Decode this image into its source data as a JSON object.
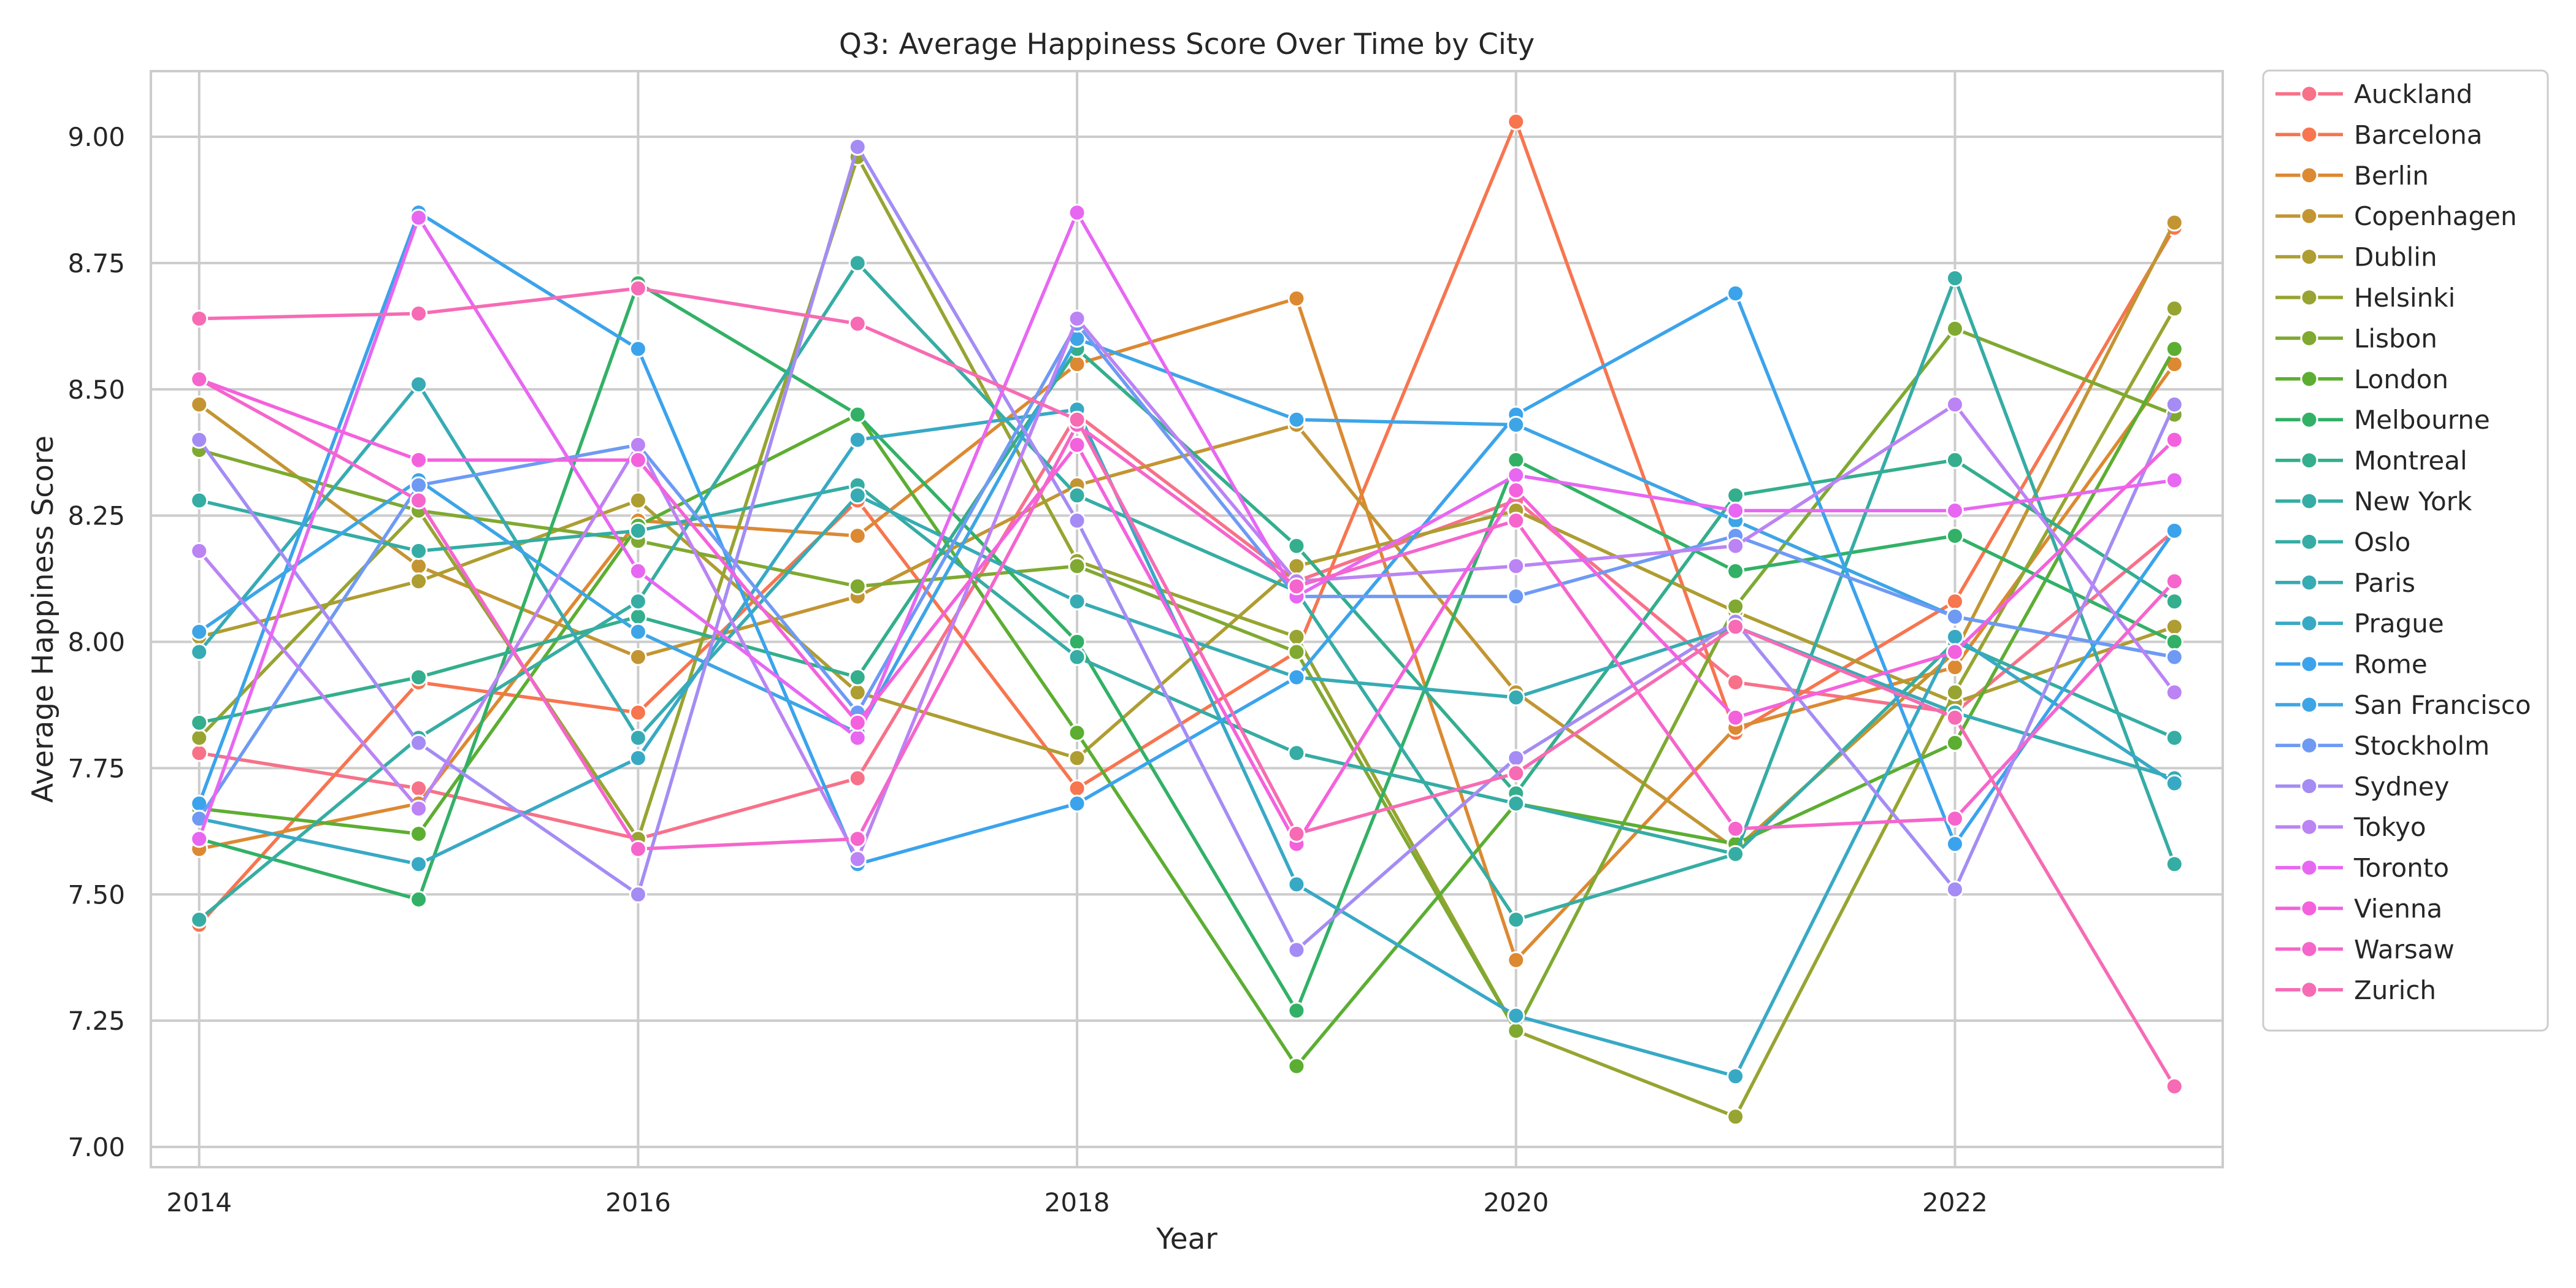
{
  "chart_data": {
    "type": "line",
    "title": "Q3: Average Happiness Score Over Time by City",
    "xlabel": "Year",
    "ylabel": "Average Happiness Score",
    "x": [
      2014,
      2015,
      2016,
      2017,
      2018,
      2019,
      2020,
      2021,
      2022,
      2023
    ],
    "xticks": [
      "2014",
      "2016",
      "2018",
      "2020",
      "2022"
    ],
    "yticks": [
      "7.00",
      "7.25",
      "7.50",
      "7.75",
      "8.00",
      "8.25",
      "8.50",
      "8.75",
      "9.00"
    ],
    "xlim": [
      2013.78,
      2023.22
    ],
    "ylim": [
      6.96,
      9.13
    ],
    "grid": true,
    "legend_position": "outside-right",
    "series": [
      {
        "name": "Auckland",
        "color": "#f77189",
        "values": [
          7.78,
          7.71,
          7.61,
          7.73,
          8.45,
          8.12,
          8.28,
          7.92,
          7.86,
          8.22
        ]
      },
      {
        "name": "Barcelona",
        "color": "#f7754f",
        "values": [
          7.44,
          7.92,
          7.86,
          8.28,
          7.71,
          7.98,
          9.03,
          7.82,
          8.08,
          8.82
        ]
      },
      {
        "name": "Berlin",
        "color": "#dc8932",
        "values": [
          7.59,
          7.68,
          8.24,
          8.21,
          8.55,
          8.68,
          7.37,
          7.83,
          7.95,
          8.55
        ]
      },
      {
        "name": "Copenhagen",
        "color": "#c39532",
        "values": [
          8.47,
          8.15,
          7.97,
          8.09,
          8.31,
          8.43,
          7.9,
          7.59,
          7.98,
          8.83
        ]
      },
      {
        "name": "Dublin",
        "color": "#ae9d31",
        "values": [
          8.01,
          8.12,
          8.28,
          7.9,
          7.77,
          8.15,
          8.26,
          8.06,
          7.88,
          8.03
        ]
      },
      {
        "name": "Helsinki",
        "color": "#97a431",
        "values": [
          7.81,
          8.26,
          7.61,
          8.96,
          8.16,
          8.01,
          7.23,
          7.06,
          7.9,
          8.66
        ]
      },
      {
        "name": "Lisbon",
        "color": "#7fa931",
        "values": [
          8.38,
          8.26,
          8.2,
          8.11,
          8.15,
          7.98,
          7.23,
          8.07,
          8.62,
          8.45
        ]
      },
      {
        "name": "London",
        "color": "#5cae32",
        "values": [
          7.67,
          7.62,
          8.23,
          8.45,
          7.82,
          7.16,
          7.68,
          7.6,
          7.8,
          8.58
        ]
      },
      {
        "name": "Melbourne",
        "color": "#32b166",
        "values": [
          7.61,
          7.49,
          8.71,
          8.45,
          8.0,
          7.27,
          8.36,
          8.14,
          8.21,
          8.0
        ]
      },
      {
        "name": "Montreal",
        "color": "#34ae8d",
        "values": [
          7.84,
          7.93,
          8.05,
          7.93,
          8.58,
          8.19,
          7.7,
          8.29,
          8.36,
          8.08
        ]
      },
      {
        "name": "New York",
        "color": "#35aca4",
        "values": [
          8.28,
          8.18,
          8.22,
          8.31,
          7.97,
          7.78,
          7.68,
          7.58,
          8.72,
          7.56
        ]
      },
      {
        "name": "Oslo",
        "color": "#36ada4",
        "values": [
          7.45,
          7.81,
          8.08,
          8.75,
          8.29,
          8.1,
          7.45,
          7.58,
          8.0,
          7.81
        ]
      },
      {
        "name": "Paris",
        "color": "#37abb4",
        "values": [
          7.98,
          8.51,
          7.81,
          8.29,
          8.08,
          7.93,
          7.89,
          8.03,
          7.86,
          7.73
        ]
      },
      {
        "name": "Prague",
        "color": "#38a9c5",
        "values": [
          7.65,
          7.56,
          7.77,
          8.4,
          8.46,
          7.52,
          7.26,
          7.14,
          8.01,
          7.72
        ]
      },
      {
        "name": "Rome",
        "color": "#3ba3ec",
        "values": [
          7.68,
          8.85,
          8.58,
          7.56,
          7.68,
          7.93,
          8.45,
          8.69,
          7.6,
          8.22
        ]
      },
      {
        "name": "San Francisco",
        "color": "#3da5e6",
        "values": [
          8.02,
          8.32,
          8.02,
          7.82,
          8.6,
          8.44,
          8.43,
          8.24,
          8.05,
          7.97
        ]
      },
      {
        "name": "Stockholm",
        "color": "#6e9af4",
        "values": [
          7.65,
          8.31,
          8.39,
          7.86,
          8.63,
          8.09,
          8.09,
          8.21,
          8.05,
          7.97
        ]
      },
      {
        "name": "Sydney",
        "color": "#a48cf4",
        "values": [
          8.4,
          7.8,
          7.5,
          8.98,
          8.24,
          7.39,
          7.77,
          8.04,
          7.51,
          8.47
        ]
      },
      {
        "name": "Tokyo",
        "color": "#bb83f4",
        "values": [
          8.18,
          7.67,
          8.39,
          7.57,
          8.64,
          8.12,
          8.15,
          8.19,
          8.47,
          7.9
        ]
      },
      {
        "name": "Toronto",
        "color": "#e767f2",
        "values": [
          7.61,
          8.84,
          8.14,
          7.81,
          8.85,
          8.09,
          8.33,
          8.26,
          8.26,
          8.32
        ]
      },
      {
        "name": "Vienna",
        "color": "#f461dd",
        "values": [
          8.52,
          8.36,
          8.36,
          7.84,
          8.39,
          7.6,
          8.3,
          7.85,
          7.98,
          8.4
        ]
      },
      {
        "name": "Warsaw",
        "color": "#f565cc",
        "values": [
          8.52,
          8.28,
          7.59,
          7.61,
          8.43,
          8.11,
          8.24,
          7.63,
          7.65,
          8.12
        ]
      },
      {
        "name": "Zurich",
        "color": "#f66bb4",
        "values": [
          8.64,
          8.65,
          8.7,
          8.63,
          8.44,
          7.62,
          7.74,
          8.03,
          7.85,
          7.12
        ]
      }
    ]
  }
}
